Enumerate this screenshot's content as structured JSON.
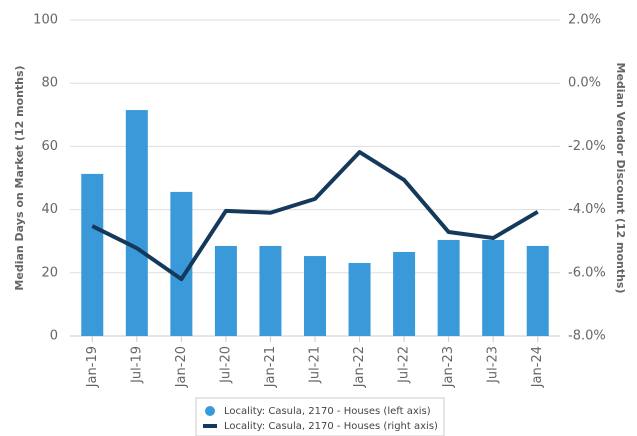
{
  "chart_data": {
    "type": "bar",
    "categories": [
      "Jan-19",
      "Jul-19",
      "Jan-20",
      "Jul-20",
      "Jan-21",
      "Jul-21",
      "Jan-22",
      "Jul-22",
      "Jan-23",
      "Jul-23",
      "Jan-24"
    ],
    "ylabel": "Median Days on Market (12 months)",
    "y2label": "Median Vendor Discount (12 months)",
    "ylim": [
      0,
      100
    ],
    "yticks": [
      0,
      20,
      40,
      60,
      80,
      100
    ],
    "y2lim": [
      -8,
      2
    ],
    "y2ticks": [
      {
        "value": -8,
        "label": "-8.0%"
      },
      {
        "value": -6,
        "label": "-6.0%"
      },
      {
        "value": -4,
        "label": "-4.0%"
      },
      {
        "value": -2,
        "label": "-2.0%"
      },
      {
        "value": 0,
        "label": "0.0%"
      },
      {
        "value": 2,
        "label": "2.0%"
      }
    ],
    "grid": true,
    "series": [
      {
        "name": "Locality: Casula, 2170 - Houses (left axis)",
        "type": "bar",
        "color": "#3a9ad9",
        "values": [
          51.3,
          71.5,
          45.6,
          28.5,
          28.5,
          25.3,
          23.1,
          26.6,
          30.4,
          30.4,
          28.5
        ]
      },
      {
        "name": "Locality: Casula, 2170 - Houses (right axis)",
        "type": "line",
        "axis": "y2",
        "color": "#15395b",
        "values": [
          -4.52,
          -5.22,
          -6.2,
          -4.04,
          -4.1,
          -3.66,
          -2.18,
          -3.06,
          -4.71,
          -4.9,
          -4.07
        ]
      }
    ]
  }
}
